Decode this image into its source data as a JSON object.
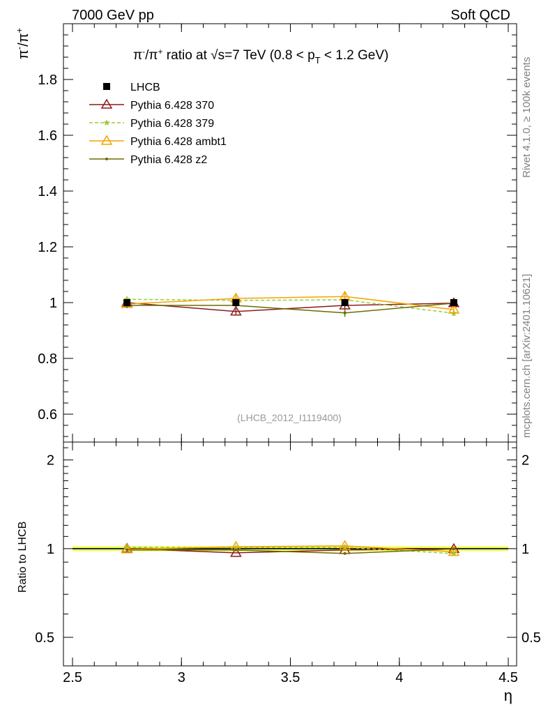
{
  "header": {
    "left": "7000 GeV pp",
    "right": "Soft QCD"
  },
  "side_labels": {
    "rivet": "Rivet 4.1.0, ≥ 100k events",
    "mcplots": "mcplots.cern.ch [arXiv:2401.10621]"
  },
  "chart_data": {
    "type": "scatter",
    "title_parts": {
      "pi": "π",
      "minus": "-",
      "slash": "/",
      "plus": "+",
      "ratio_at": " ratio at ",
      "sqrt": "√",
      "s_eq": "s=7 TeV (0.8 < p",
      "T": "T",
      "tail": " < 1.2 GeV)"
    },
    "ylabel_parts": {
      "pi": "π",
      "minus": "-",
      "slash": "/",
      "plus": "+"
    },
    "ylabel_ratio": "Ratio to LHCB",
    "xlabel": "η",
    "watermark": "(LHCB_2012_I1119400)",
    "xlim": [
      2.5,
      4.5
    ],
    "ylim_main": [
      0.5,
      2.0
    ],
    "ylim_ratio": [
      0.4,
      2.3
    ],
    "x_ticks": [
      "2.5",
      "3",
      "3.5",
      "4",
      "4.5"
    ],
    "y_ticks_main": [
      "0.6",
      "0.8",
      "1",
      "1.2",
      "1.4",
      "1.6",
      "1.8"
    ],
    "y_ticks_ratio": [
      "0.5",
      "1",
      "2"
    ],
    "x": [
      2.75,
      3.25,
      3.75,
      4.25
    ],
    "series": [
      {
        "name": "LHCB",
        "color": "#000000",
        "marker": "square",
        "line": "none",
        "values": [
          1.0,
          1.0,
          1.0,
          1.0
        ],
        "errors": [
          0.012,
          0.012,
          0.012,
          0.012
        ]
      },
      {
        "name": "Pythia 6.428 370",
        "color": "#8b1a1a",
        "marker": "triangle-open",
        "line": "solid",
        "values": [
          1.0,
          0.968,
          0.99,
          0.998
        ],
        "errors": [
          0.01,
          0.01,
          0.012,
          0.01
        ]
      },
      {
        "name": "Pythia 6.428 379",
        "color": "#9acd32",
        "marker": "star",
        "line": "dashed",
        "values": [
          1.012,
          1.008,
          1.01,
          0.962
        ],
        "errors": [
          0.01,
          0.01,
          0.012,
          0.01
        ]
      },
      {
        "name": "Pythia 6.428 ambt1",
        "color": "#f4a300",
        "marker": "triangle-open",
        "line": "solid",
        "values": [
          0.995,
          1.015,
          1.022,
          0.975
        ],
        "errors": [
          0.01,
          0.012,
          0.014,
          0.01
        ]
      },
      {
        "name": "Pythia 6.428 z2",
        "color": "#6b6b00",
        "marker": "dot",
        "line": "solid",
        "values": [
          0.99,
          0.99,
          0.963,
          0.998
        ],
        "errors": [
          0.01,
          0.012,
          0.014,
          0.01
        ]
      }
    ],
    "ratio_band": {
      "values": [
        1.0,
        1.0,
        1.0,
        1.0
      ],
      "error": 0.02,
      "color": "#ffff66",
      "inner_color": "#66dd66"
    }
  }
}
